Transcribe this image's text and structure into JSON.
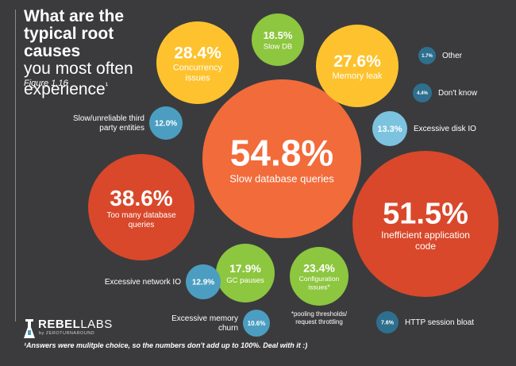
{
  "title_bold": "What are the typical root causes",
  "title_light": "you most often experience",
  "title_mark": "¹",
  "figure_label": "Figure 1.16",
  "footnote": "¹Answers were mulitple choice, so the numbers don't add up to 100%. Deal with it :)",
  "logo": {
    "brand_rebel": "REBEL",
    "brand_labs": "LABS",
    "by": "by ",
    "sub": "ZEROTURNAROUND"
  },
  "colors": {
    "orange": "#f26b3a",
    "red": "#d9482b",
    "yellow": "#fdc22d",
    "green": "#8dc63f",
    "blue": "#4b9ec1",
    "light_blue": "#7cc3e0",
    "dark_blue": "#2e6f8e",
    "background": "#3b3b3d"
  },
  "chart_data": {
    "type": "bubble",
    "title": "What are the typical root causes you most often experience¹",
    "unit": "%",
    "points": [
      {
        "label": "Slow database queries",
        "value": 54.8,
        "display": "54.8%",
        "color": "orange"
      },
      {
        "label": "Inefficient application code",
        "value": 51.5,
        "display": "51.5%",
        "color": "red"
      },
      {
        "label": "Too many database queries",
        "value": 38.6,
        "display": "38.6%",
        "color": "red"
      },
      {
        "label": "Concurrency issues",
        "value": 28.4,
        "display": "28.4%",
        "color": "yellow"
      },
      {
        "label": "Memory leak",
        "value": 27.6,
        "display": "27.6%",
        "color": "yellow"
      },
      {
        "label": "Configuration issues*",
        "value": 23.4,
        "display": "23.4%",
        "color": "green"
      },
      {
        "label": "Slow DB",
        "value": 18.5,
        "display": "18.5%",
        "color": "green"
      },
      {
        "label": "GC pauses",
        "value": 17.9,
        "display": "17.9%",
        "color": "green"
      },
      {
        "label": "Excessive disk IO",
        "value": 13.3,
        "display": "13.3%",
        "color": "light_blue"
      },
      {
        "label": "Excessive network IO",
        "value": 12.9,
        "display": "12.9%",
        "color": "blue"
      },
      {
        "label": "Slow/unreliable third party entities",
        "value": 12.0,
        "display": "12.0%",
        "color": "blue"
      },
      {
        "label": "Excessive memory churn",
        "value": 10.6,
        "display": "10.6%",
        "color": "blue"
      },
      {
        "label": "HTTP session bloat",
        "value": 7.6,
        "display": "7.6%",
        "color": "dark_blue"
      },
      {
        "label": "Don't know",
        "value": 4.4,
        "display": "4.4%",
        "color": "dark_blue"
      },
      {
        "label": "Other",
        "value": 1.7,
        "display": "1.7%",
        "color": "dark_blue"
      }
    ],
    "annotations": [
      {
        "for": "Configuration issues*",
        "text": "*pooling thresholds/ request throttling"
      }
    ]
  }
}
